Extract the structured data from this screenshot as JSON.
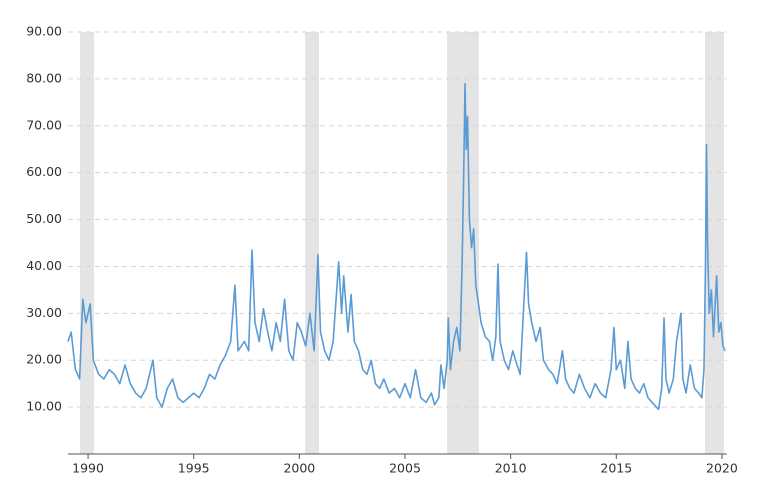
{
  "chart_data": {
    "type": "line",
    "x": [
      1989.05,
      1989.2,
      1989.4,
      1989.6,
      1989.75,
      1989.9,
      1990.1,
      1990.25,
      1990.5,
      1990.75,
      1991,
      1991.25,
      1991.5,
      1991.75,
      1992,
      1992.25,
      1992.5,
      1992.75,
      1993.07,
      1993.25,
      1993.5,
      1993.75,
      1994,
      1994.25,
      1994.5,
      1994.75,
      1995,
      1995.25,
      1995.5,
      1995.75,
      1996,
      1996.25,
      1996.5,
      1996.75,
      1996.95,
      1997.1,
      1997.4,
      1997.6,
      1997.76,
      1997.9,
      1998.1,
      1998.3,
      1998.5,
      1998.7,
      1998.9,
      1999.1,
      1999.3,
      1999.5,
      1999.7,
      1999.9,
      2000.1,
      2000.3,
      2000.5,
      2000.7,
      2000.88,
      2001,
      2001.2,
      2001.4,
      2001.6,
      2001.86,
      2002,
      2002.1,
      2002.3,
      2002.45,
      2002.6,
      2002.8,
      2003,
      2003.2,
      2003.4,
      2003.6,
      2003.8,
      2004,
      2004.25,
      2004.5,
      2004.75,
      2005,
      2005.25,
      2005.5,
      2005.75,
      2006,
      2006.25,
      2006.4,
      2006.6,
      2006.7,
      2006.85,
      2007,
      2007.05,
      2007.15,
      2007.3,
      2007.45,
      2007.6,
      2007.7,
      2007.78,
      2007.84,
      2007.9,
      2007.96,
      2008.05,
      2008.15,
      2008.25,
      2008.35,
      2008.45,
      2008.6,
      2008.8,
      2009,
      2009.15,
      2009.3,
      2009.4,
      2009.5,
      2009.7,
      2009.9,
      2010.1,
      2010.3,
      2010.45,
      2010.75,
      2010.85,
      2011,
      2011.2,
      2011.4,
      2011.55,
      2011.8,
      2012,
      2012.2,
      2012.45,
      2012.6,
      2012.8,
      2013,
      2013.25,
      2013.5,
      2013.75,
      2014,
      2014.25,
      2014.5,
      2014.75,
      2014.89,
      2015,
      2015.2,
      2015.4,
      2015.55,
      2015.7,
      2015.9,
      2016.1,
      2016.3,
      2016.5,
      2016.7,
      2016.9,
      2017,
      2017.15,
      2017.26,
      2017.35,
      2017.5,
      2017.7,
      2017.85,
      2018.06,
      2018.15,
      2018.3,
      2018.5,
      2018.7,
      2018.9,
      2019.05,
      2019.15,
      2019.22,
      2019.27,
      2019.32,
      2019.4,
      2019.5,
      2019.6,
      2019.75,
      2019.85,
      2019.95,
      2020.05,
      2020.15
    ],
    "values": [
      24,
      26,
      18,
      16,
      33,
      28,
      32,
      20,
      17,
      16,
      18,
      17,
      15,
      19,
      15,
      13,
      12,
      14,
      20,
      12,
      10,
      14,
      16,
      12,
      11,
      12,
      13,
      12,
      14,
      17,
      16,
      19,
      21,
      24,
      36,
      22,
      24,
      22,
      43.5,
      28,
      24,
      31,
      26,
      22,
      28,
      24,
      33,
      22,
      20,
      28,
      26,
      23,
      30,
      22,
      42.5,
      26,
      22,
      20,
      24,
      41,
      30,
      38,
      26,
      34,
      24,
      22,
      18,
      17,
      20,
      15,
      14,
      16,
      13,
      14,
      12,
      15,
      12,
      18,
      12,
      11,
      13,
      10.5,
      12,
      19,
      14,
      20,
      29,
      18,
      24,
      27,
      22,
      40,
      60,
      79,
      65,
      72,
      50,
      44,
      48,
      36,
      33,
      28,
      25,
      24,
      20,
      25,
      40.5,
      24,
      20,
      18,
      22,
      19,
      17,
      43,
      32,
      28,
      24,
      27,
      20,
      18,
      17,
      15,
      22,
      16,
      14,
      13,
      17,
      14,
      12,
      15,
      13,
      12,
      18,
      27,
      18,
      20,
      14,
      24,
      16,
      14,
      13,
      15,
      12,
      11,
      10,
      9.5,
      14,
      29,
      16,
      13,
      16,
      24,
      30,
      16,
      13,
      19,
      14,
      13,
      12,
      18,
      40,
      66,
      45,
      30,
      35,
      25,
      38,
      26,
      28,
      23,
      22
    ],
    "color": "#5b9bd5",
    "shaded_periods": [
      [
        1989.62,
        1990.28
      ],
      [
        2000.27,
        2000.93
      ],
      [
        2006.99,
        2008.5
      ],
      [
        2019.2,
        2020.1
      ]
    ],
    "shade_color": "#e4e4e4",
    "xlim": [
      1989.05,
      2020.24
    ],
    "xticks": [
      1990,
      1995,
      2000,
      2005,
      2010,
      2015,
      2020
    ],
    "ylim": [
      0,
      90
    ],
    "yticks": [
      {
        "value": 10,
        "label": "10.00"
      },
      {
        "value": 20,
        "label": "20.00"
      },
      {
        "value": 30,
        "label": "30.00"
      },
      {
        "value": 40,
        "label": "40.00"
      },
      {
        "value": 50,
        "label": "50.00"
      },
      {
        "value": 60,
        "label": "60.00"
      },
      {
        "value": 70,
        "label": "70.00"
      },
      {
        "value": 80,
        "label": "80.00"
      },
      {
        "value": 90,
        "label": "90.00"
      }
    ],
    "grid": true
  }
}
